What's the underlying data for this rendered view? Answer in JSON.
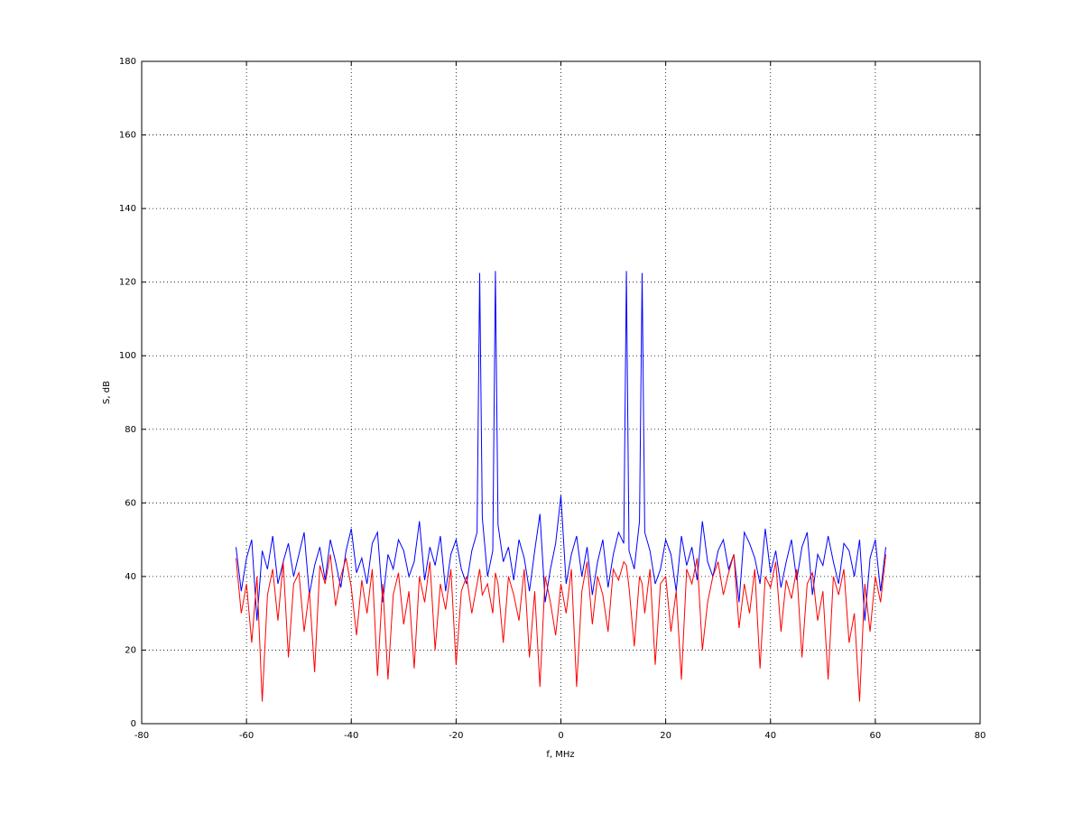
{
  "chart_data": {
    "type": "line",
    "xlabel": "f, MHz",
    "ylabel": "S, dB",
    "xlim": [
      -80,
      80
    ],
    "ylim": [
      0,
      180
    ],
    "xticks": [
      -80,
      -60,
      -40,
      -20,
      0,
      20,
      40,
      60,
      80
    ],
    "yticks": [
      0,
      20,
      40,
      60,
      80,
      100,
      120,
      140,
      160,
      180
    ],
    "grid": true,
    "x": [
      -62,
      -61,
      -60,
      -59,
      -58,
      -57,
      -56,
      -55,
      -54,
      -53,
      -52,
      -51,
      -50,
      -49,
      -48,
      -47,
      -46,
      -45,
      -44,
      -43,
      -42,
      -41,
      -40,
      -39,
      -38,
      -37,
      -36,
      -35,
      -34,
      -33,
      -32,
      -31,
      -30,
      -29,
      -28,
      -27,
      -26,
      -25,
      -24,
      -23,
      -22,
      -21,
      -20,
      -19,
      -18,
      -17,
      -16,
      -15.5,
      -15,
      -14,
      -13,
      -12.5,
      -12,
      -11,
      -10,
      -9,
      -8,
      -7,
      -6,
      -5,
      -4,
      -3,
      -2,
      -1,
      0,
      1,
      2,
      3,
      4,
      5,
      6,
      7,
      8,
      9,
      10,
      11,
      12,
      12.5,
      13,
      14,
      15,
      15.5,
      16,
      17,
      18,
      19,
      20,
      21,
      22,
      23,
      24,
      25,
      26,
      27,
      28,
      29,
      30,
      31,
      32,
      33,
      34,
      35,
      36,
      37,
      38,
      39,
      40,
      41,
      42,
      43,
      44,
      45,
      46,
      47,
      48,
      49,
      50,
      51,
      52,
      53,
      54,
      55,
      56,
      57,
      58,
      59,
      60,
      61,
      62
    ],
    "series": [
      {
        "color": "#0000ff",
        "values": [
          48,
          36,
          45,
          50,
          28,
          47,
          42,
          51,
          38,
          44,
          49,
          40,
          46,
          52,
          35,
          43,
          48,
          39,
          50,
          44,
          37,
          47,
          53,
          41,
          45,
          38,
          49,
          52,
          33,
          46,
          42,
          50,
          47,
          40,
          44,
          55,
          39,
          48,
          43,
          51,
          36,
          46,
          50,
          42,
          38,
          47,
          52,
          122.5,
          56,
          40,
          47,
          123,
          54,
          44,
          48,
          39,
          50,
          45,
          36,
          47,
          57,
          33,
          42,
          49,
          62,
          38,
          46,
          51,
          40,
          48,
          35,
          44,
          50,
          37,
          46,
          52,
          49,
          123,
          47,
          42,
          55,
          122.5,
          52,
          47,
          38,
          42,
          50,
          46,
          36,
          51,
          43,
          48,
          39,
          55,
          44,
          40,
          47,
          50,
          42,
          46,
          33,
          52,
          49,
          45,
          38,
          53,
          41,
          47,
          37,
          44,
          50,
          39,
          48,
          52,
          35,
          46,
          43,
          51,
          44,
          38,
          49,
          47,
          40,
          50,
          28,
          45,
          50,
          36,
          48
        ]
      },
      {
        "color": "#ff0000",
        "values": [
          45,
          30,
          38,
          22,
          40,
          6,
          35,
          42,
          28,
          44,
          18,
          38,
          41,
          25,
          36,
          14,
          43,
          38,
          46,
          32,
          40,
          45,
          37,
          24,
          39,
          30,
          42,
          13,
          38,
          12,
          35,
          41,
          27,
          36,
          15,
          40,
          33,
          44,
          20,
          38,
          31,
          42,
          16,
          36,
          40,
          30,
          38,
          42,
          35,
          38,
          30,
          41,
          38,
          22,
          40,
          35,
          28,
          42,
          18,
          36,
          10,
          40,
          33,
          24,
          38,
          30,
          42,
          10,
          36,
          44,
          27,
          40,
          35,
          25,
          42,
          39,
          44,
          43,
          37,
          21,
          40,
          38,
          30,
          42,
          16,
          38,
          40,
          25,
          36,
          12,
          42,
          38,
          45,
          20,
          33,
          40,
          44,
          35,
          41,
          46,
          26,
          38,
          30,
          42,
          15,
          40,
          37,
          44,
          25,
          39,
          34,
          42,
          18,
          38,
          41,
          28,
          36,
          12,
          40,
          35,
          42,
          22,
          30,
          6,
          38,
          25,
          40,
          33,
          46
        ]
      }
    ]
  }
}
